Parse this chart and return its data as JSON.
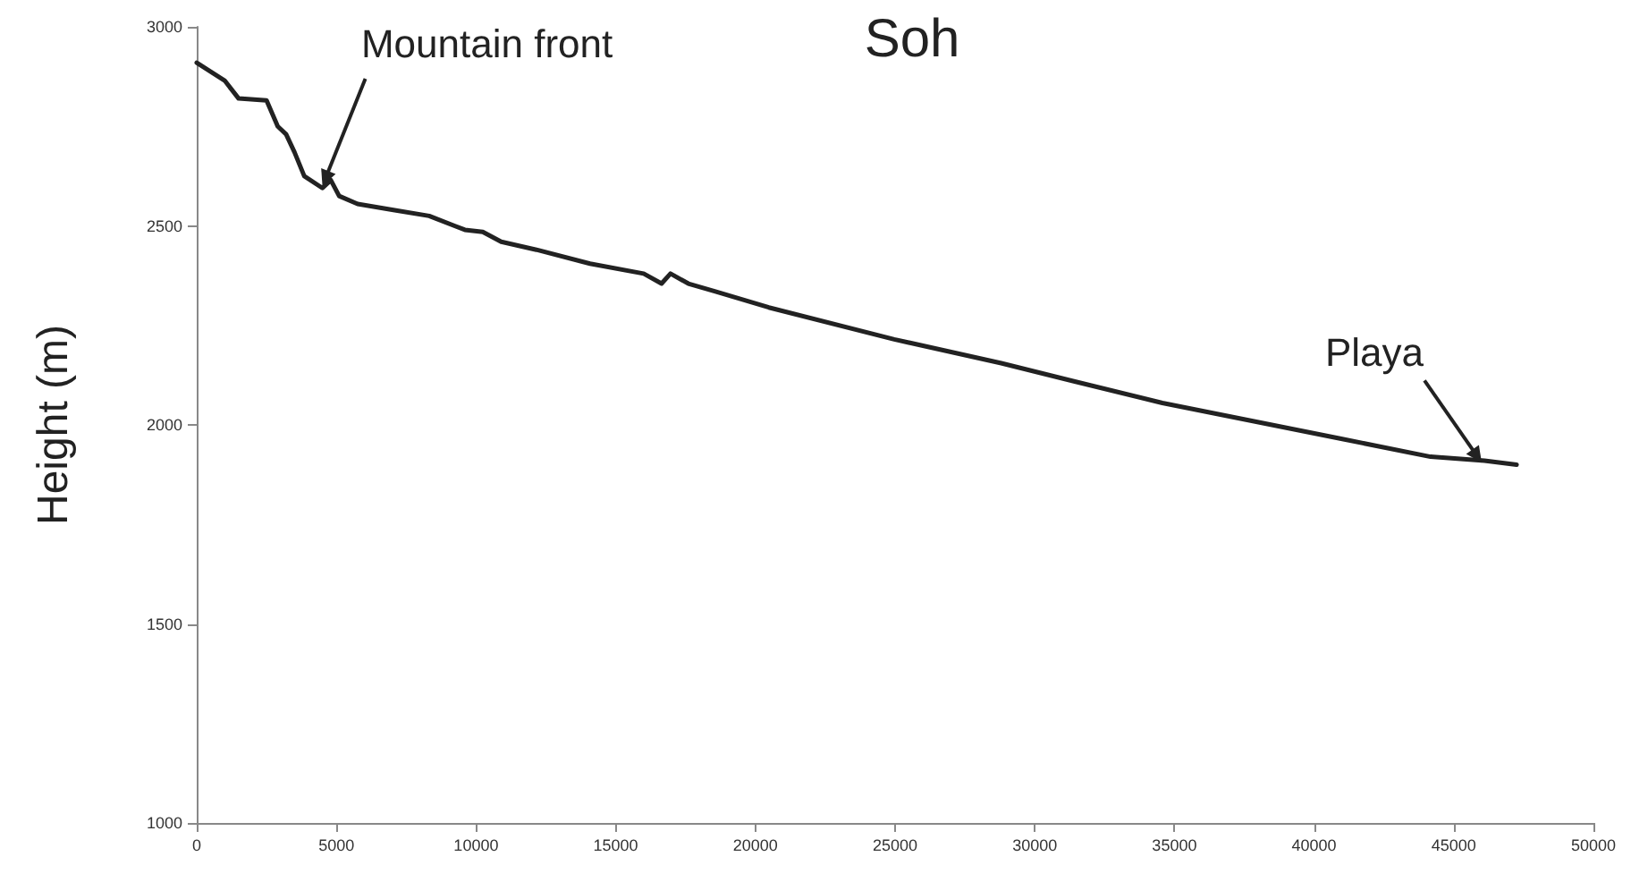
{
  "chart_data": {
    "type": "line",
    "title": "Soh",
    "ylabel": "Height (m)",
    "series": [
      {
        "color": "#222222",
        "x": [
          0,
          1000,
          1500,
          2500,
          2900,
          3200,
          3500,
          3850,
          4500,
          4800,
          5100,
          5760,
          7040,
          8320,
          9600,
          10240,
          10900,
          12160,
          14080,
          16000,
          16640,
          16960,
          17600,
          18570,
          20480,
          24970,
          28800,
          31370,
          34570,
          37770,
          40970,
          44170,
          46100,
          47250
        ],
        "values": [
          2910,
          2865,
          2820,
          2815,
          2750,
          2730,
          2685,
          2625,
          2595,
          2615,
          2575,
          2555,
          2540,
          2525,
          2490,
          2485,
          2460,
          2440,
          2405,
          2380,
          2355,
          2380,
          2355,
          2335,
          2295,
          2215,
          2155,
          2110,
          2055,
          2010,
          1965,
          1920,
          1910,
          1900
        ]
      }
    ],
    "xlim": [
      0,
      50000
    ],
    "xticks": [
      0,
      5000,
      10000,
      15000,
      20000,
      25000,
      30000,
      35000,
      40000,
      45000,
      50000
    ],
    "ylim": [
      1000,
      3000
    ],
    "yticks": [
      1000,
      1500,
      2000,
      2500,
      3000
    ],
    "grid": false,
    "marker": "none",
    "line_style": "solid",
    "annotations": [
      {
        "text": "Mountain front",
        "x": 4500,
        "y": 2600
      },
      {
        "text": "Playa",
        "x": 46000,
        "y": 1905
      }
    ]
  }
}
